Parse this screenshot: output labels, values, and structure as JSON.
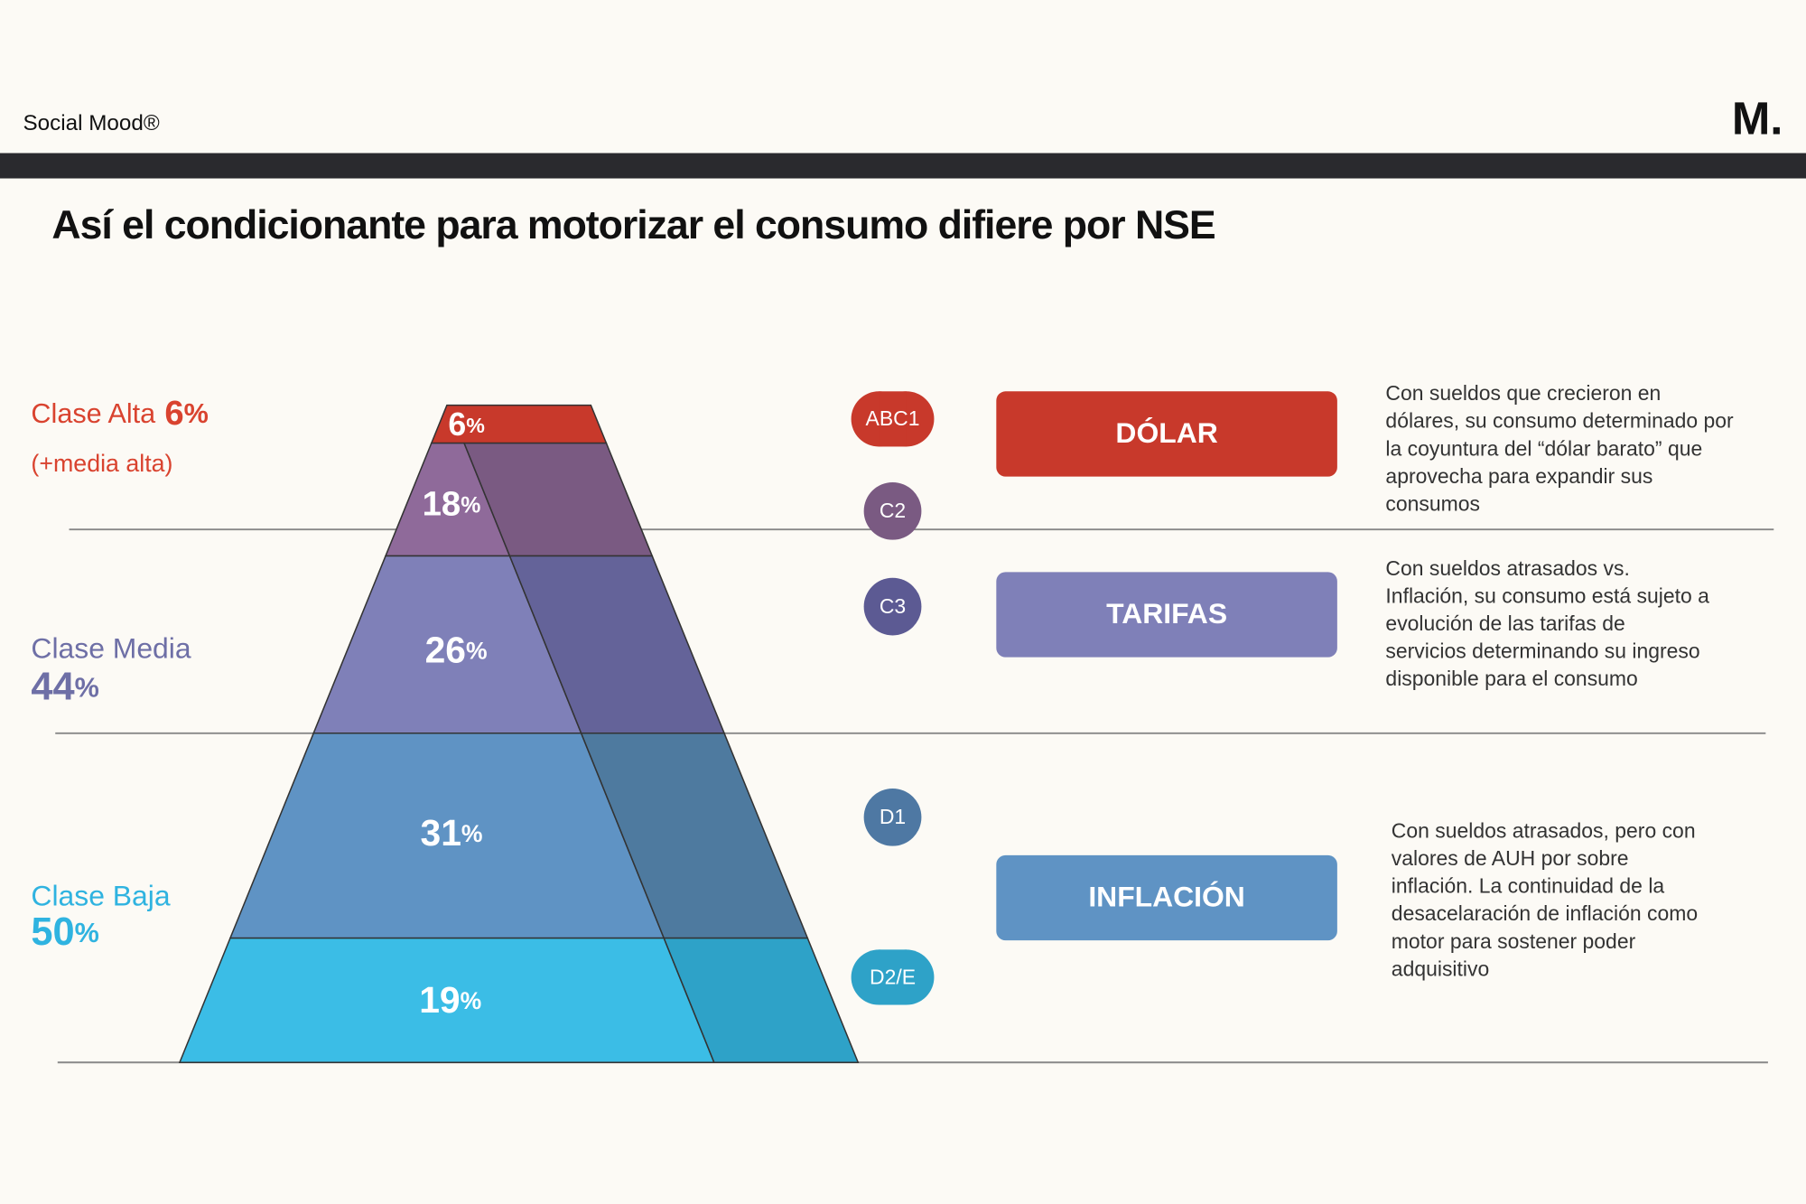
{
  "header": {
    "brand": "Social Mood®",
    "logo": "M."
  },
  "title": "Así el condicionante para motorizar el consumo difiere por NSE",
  "unit": "%",
  "classes": [
    {
      "name": "Clase Alta",
      "value": 6,
      "note": "(+media alta)"
    },
    {
      "name": "Clase Media",
      "value": 44
    },
    {
      "name": "Clase Baja",
      "value": 50
    }
  ],
  "pyramid": [
    {
      "segment": "ABC1",
      "value": 6
    },
    {
      "segment": "C2",
      "value": 18
    },
    {
      "segment": "C3",
      "value": 26
    },
    {
      "segment": "D1",
      "value": 31
    },
    {
      "segment": "D2/E",
      "value": 19
    }
  ],
  "drivers": [
    {
      "label": "DÓLAR",
      "text": [
        "Con sueldos que crecieron en",
        "dólares, su consumo determinado por",
        "la coyuntura del “dólar barato” que",
        "aprovecha para expandir sus",
        "consumos"
      ]
    },
    {
      "label": "TARIFAS",
      "text": [
        "Con sueldos atrasados vs.",
        "Inflación, su consumo está sujeto a",
        "evolución de las tarifas de",
        "servicios determinando su ingreso",
        "disponible para el consumo"
      ]
    },
    {
      "label": "INFLACIÓN",
      "text": [
        "Con sueldos atrasados, pero con",
        "valores de AUH por sobre",
        "inflación. La continuidad de la",
        "desacelaración de inflación como",
        "motor para sostener poder",
        "adquisitivo"
      ]
    }
  ]
}
